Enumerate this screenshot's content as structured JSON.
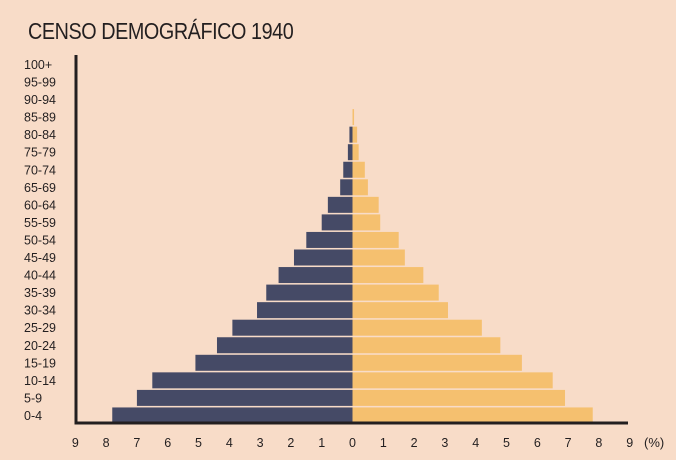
{
  "chart_data": {
    "type": "bar",
    "title": "CENSO DEMOGRÁFICO 1940",
    "unit_label": "(%)",
    "categories": [
      "0-4",
      "5-9",
      "10-14",
      "15-19",
      "20-24",
      "25-29",
      "30-34",
      "35-39",
      "40-44",
      "45-49",
      "50-54",
      "55-59",
      "60-64",
      "65-69",
      "70-74",
      "75-79",
      "80-84",
      "85-89",
      "90-94",
      "95-99",
      "100+"
    ],
    "x_ticks": [
      "9",
      "8",
      "7",
      "6",
      "5",
      "4",
      "3",
      "2",
      "1",
      "0",
      "1",
      "2",
      "3",
      "4",
      "5",
      "6",
      "7",
      "8",
      "9"
    ],
    "xlim": [
      -9,
      9
    ],
    "grid": false,
    "orientation": "horizontal",
    "series": [
      {
        "values": [
          7.8,
          7.0,
          6.5,
          5.1,
          4.4,
          3.9,
          3.1,
          2.8,
          2.4,
          1.9,
          1.5,
          1.0,
          0.8,
          0.4,
          0.3,
          0.15,
          0.1,
          0.0,
          0.0,
          0.0,
          0.0
        ],
        "color": "#454a66"
      },
      {
        "values": [
          7.8,
          6.9,
          6.5,
          5.5,
          4.8,
          4.2,
          3.1,
          2.8,
          2.3,
          1.7,
          1.5,
          0.9,
          0.85,
          0.5,
          0.4,
          0.2,
          0.15,
          0.05,
          0.0,
          0.0,
          0.0
        ],
        "color": "#f5c06f"
      }
    ]
  }
}
